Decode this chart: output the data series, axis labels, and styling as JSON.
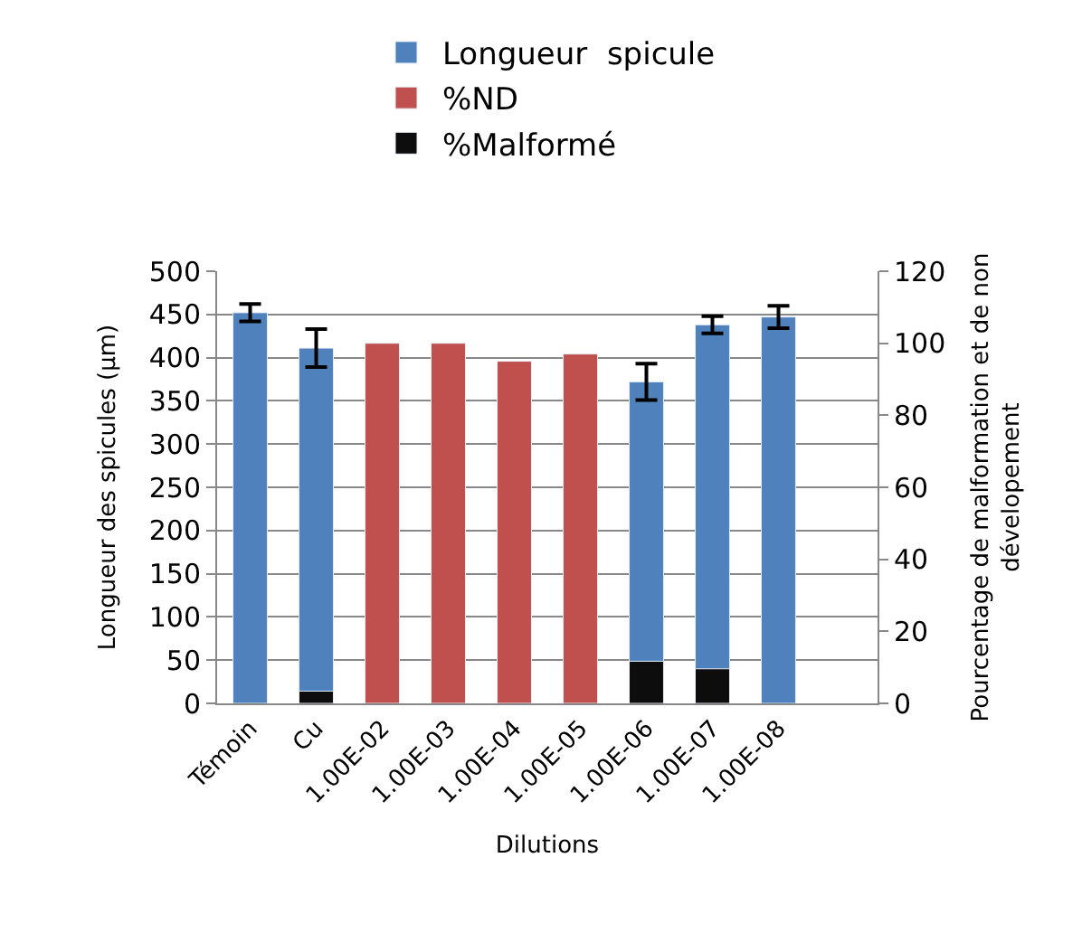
{
  "chart_data": {
    "type": "bar",
    "xlabel": "Dilutions",
    "ylabel": "Longueur des spicules (µm)",
    "y2label": "Pourcentage de malformation et de non dévelopement",
    "categories": [
      "Témoin",
      "Cu",
      "1.00E-02",
      "1.00E-03",
      "1.00E-04",
      "1.00E-05",
      "1.00E-06",
      "1.00E-07",
      "1.00E-08",
      null
    ],
    "series": [
      {
        "name": "Longueur  spicule",
        "color": "#4f81bd",
        "values": [
          452,
          411,
          null,
          null,
          null,
          null,
          372,
          438,
          447,
          null
        ],
        "errors": [
          10,
          22,
          null,
          null,
          null,
          null,
          21,
          10,
          13,
          null
        ]
      },
      {
        "name": "%ND",
        "color": "#c0504d",
        "axis": "y2",
        "values": [
          null,
          null,
          100,
          100,
          95,
          97,
          null,
          null,
          null,
          null
        ]
      },
      {
        "name": "%Malformé",
        "color": "#0d0d0d",
        "axis": "y2",
        "values": [
          null,
          3.4,
          null,
          null,
          null,
          null,
          11.7,
          9.6,
          null,
          null
        ]
      }
    ],
    "ylim": [
      0,
      500
    ],
    "yticks": [
      0,
      50,
      100,
      150,
      200,
      250,
      300,
      350,
      400,
      450,
      500
    ],
    "y2lim": [
      0,
      120
    ],
    "y2ticks": [
      0,
      20,
      40,
      60,
      80,
      100,
      120
    ],
    "grid": "y",
    "legend": "top"
  }
}
